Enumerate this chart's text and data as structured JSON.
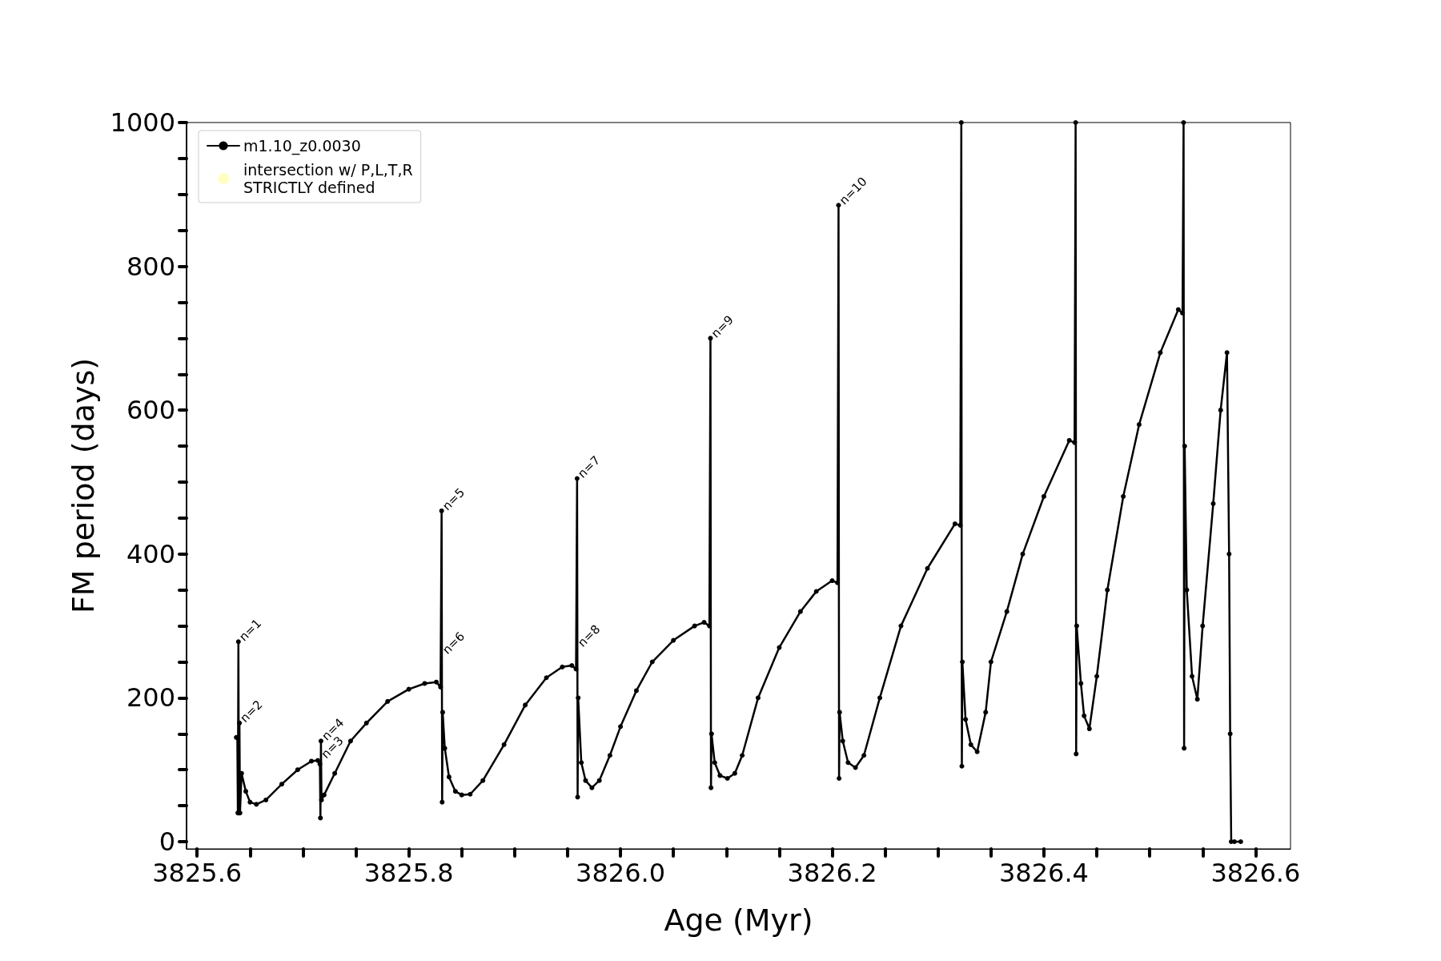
{
  "chart_data": {
    "type": "line",
    "xlabel": "Age (Myr)",
    "ylabel": "FM period (days)",
    "xlim": [
      3825.59,
      3826.633
    ],
    "ylim": [
      -10,
      1000
    ],
    "xticks": [
      {
        "value": 3825.6,
        "label": "3825.6"
      },
      {
        "value": 3825.65,
        "label": null
      },
      {
        "value": 3825.7,
        "label": null
      },
      {
        "value": 3825.75,
        "label": null
      },
      {
        "value": 3825.8,
        "label": "3825.8"
      },
      {
        "value": 3825.85,
        "label": null
      },
      {
        "value": 3825.9,
        "label": null
      },
      {
        "value": 3825.95,
        "label": null
      },
      {
        "value": 3826.0,
        "label": "3826.0"
      },
      {
        "value": 3826.05,
        "label": null
      },
      {
        "value": 3826.1,
        "label": null
      },
      {
        "value": 3826.15,
        "label": null
      },
      {
        "value": 3826.2,
        "label": "3826.2"
      },
      {
        "value": 3826.25,
        "label": null
      },
      {
        "value": 3826.3,
        "label": null
      },
      {
        "value": 3826.35,
        "label": null
      },
      {
        "value": 3826.4,
        "label": "3826.4"
      },
      {
        "value": 3826.45,
        "label": null
      },
      {
        "value": 3826.5,
        "label": null
      },
      {
        "value": 3826.55,
        "label": null
      },
      {
        "value": 3826.6,
        "label": "3826.6"
      }
    ],
    "yticks": [
      0,
      {
        "value": 50,
        "label": null
      },
      {
        "value": 100,
        "label": null
      },
      {
        "value": 150,
        "label": null
      },
      200,
      {
        "value": 250,
        "label": null
      },
      {
        "value": 300,
        "label": null
      },
      {
        "value": 350,
        "label": null
      },
      400,
      {
        "value": 450,
        "label": null
      },
      {
        "value": 500,
        "label": null
      },
      {
        "value": 550,
        "label": null
      },
      600,
      {
        "value": 650,
        "label": null
      },
      {
        "value": 700,
        "label": null
      },
      {
        "value": 750,
        "label": null
      },
      800,
      {
        "value": 850,
        "label": null
      },
      {
        "value": 900,
        "label": null
      },
      {
        "value": 950,
        "label": null
      },
      1000
    ],
    "grid": false,
    "legend": "top left",
    "marker": "circle",
    "line_style": "solid",
    "series": [
      {
        "name": "m1.10_z0.0030",
        "color": "#000000",
        "x": [
          3825.637,
          3825.638,
          3825.6385,
          3825.639,
          3825.6395,
          3825.64,
          3825.6405,
          3825.642,
          3825.646,
          3825.65,
          3825.656,
          3825.665,
          3825.68,
          3825.695,
          3825.708,
          3825.714,
          3825.716,
          3825.7165,
          3825.717,
          3825.7175,
          3825.72,
          3825.73,
          3825.745,
          3825.76,
          3825.78,
          3825.8,
          3825.815,
          3825.826,
          3825.83,
          3825.831,
          3825.8315,
          3825.832,
          3825.834,
          3825.838,
          3825.844,
          3825.85,
          3825.858,
          3825.87,
          3825.89,
          3825.91,
          3825.93,
          3825.945,
          3825.954,
          3825.958,
          3825.959,
          3825.9595,
          3825.96,
          3825.963,
          3825.967,
          3825.973,
          3825.98,
          3825.99,
          3826.0,
          3826.015,
          3826.03,
          3826.05,
          3826.07,
          3826.079,
          3826.084,
          3826.085,
          3826.0855,
          3826.086,
          3826.089,
          3826.094,
          3826.101,
          3826.108,
          3826.115,
          3826.13,
          3826.15,
          3826.17,
          3826.185,
          3826.2,
          3826.205,
          3826.206,
          3826.2065,
          3826.207,
          3826.21,
          3826.215,
          3826.222,
          3826.23,
          3826.245,
          3826.265,
          3826.29,
          3826.316,
          3826.321,
          3826.322,
          3826.3225,
          3826.323,
          3826.326,
          3826.331,
          3826.337,
          3826.345,
          3826.35,
          3826.365,
          3826.38,
          3826.4,
          3826.424,
          3826.429,
          3826.43,
          3826.4305,
          3826.431,
          3826.435,
          3826.438,
          3826.443,
          3826.45,
          3826.46,
          3826.475,
          3826.49,
          3826.51,
          3826.527,
          3826.531,
          3826.532,
          3826.5325,
          3826.533,
          3826.535,
          3826.54,
          3826.545,
          3826.55,
          3826.56,
          3826.567,
          3826.573,
          3826.575,
          3826.576,
          3826.577,
          3826.58,
          3826.586
        ],
        "values": [
          145,
          145,
          40,
          278,
          40,
          165,
          40,
          95,
          70,
          55,
          52,
          58,
          80,
          100,
          112,
          113,
          108,
          33,
          140,
          58,
          65,
          95,
          140,
          165,
          195,
          212,
          220,
          222,
          215,
          460,
          55,
          180,
          130,
          90,
          70,
          65,
          66,
          85,
          135,
          190,
          228,
          243,
          245,
          240,
          505,
          62,
          200,
          110,
          85,
          75,
          85,
          120,
          160,
          210,
          250,
          280,
          300,
          305,
          300,
          700,
          75,
          150,
          110,
          92,
          88,
          95,
          120,
          200,
          270,
          320,
          348,
          363,
          360,
          885,
          88,
          180,
          140,
          110,
          103,
          120,
          200,
          300,
          380,
          442,
          440,
          1000,
          105,
          250,
          170,
          135,
          125,
          180,
          250,
          320,
          400,
          480,
          558,
          555,
          1000,
          122,
          300,
          220,
          175,
          157,
          230,
          350,
          480,
          580,
          680,
          740,
          735,
          1000,
          130,
          550,
          350,
          230,
          198,
          300,
          470,
          600,
          680,
          400,
          150,
          0,
          0,
          0
        ]
      },
      {
        "name": "intersection w/ P,L,T,R\nSTRICTLY defined",
        "color": "#ffffb3",
        "type": "scatter"
      }
    ],
    "annotations": [
      {
        "text": "n=1",
        "x": 3825.639,
        "y": 278
      },
      {
        "text": "n=2",
        "x": 3825.64,
        "y": 165
      },
      {
        "text": "n=3",
        "x": 3825.7165,
        "y": 115
      },
      {
        "text": "n=4",
        "x": 3825.717,
        "y": 140
      },
      {
        "text": "n=5",
        "x": 3825.831,
        "y": 460
      },
      {
        "text": "n=6",
        "x": 3825.831,
        "y": 260
      },
      {
        "text": "n=7",
        "x": 3825.959,
        "y": 505
      },
      {
        "text": "n=8",
        "x": 3825.959,
        "y": 270
      },
      {
        "text": "n=9",
        "x": 3826.085,
        "y": 700
      },
      {
        "text": "n=10",
        "x": 3826.206,
        "y": 885
      }
    ]
  }
}
